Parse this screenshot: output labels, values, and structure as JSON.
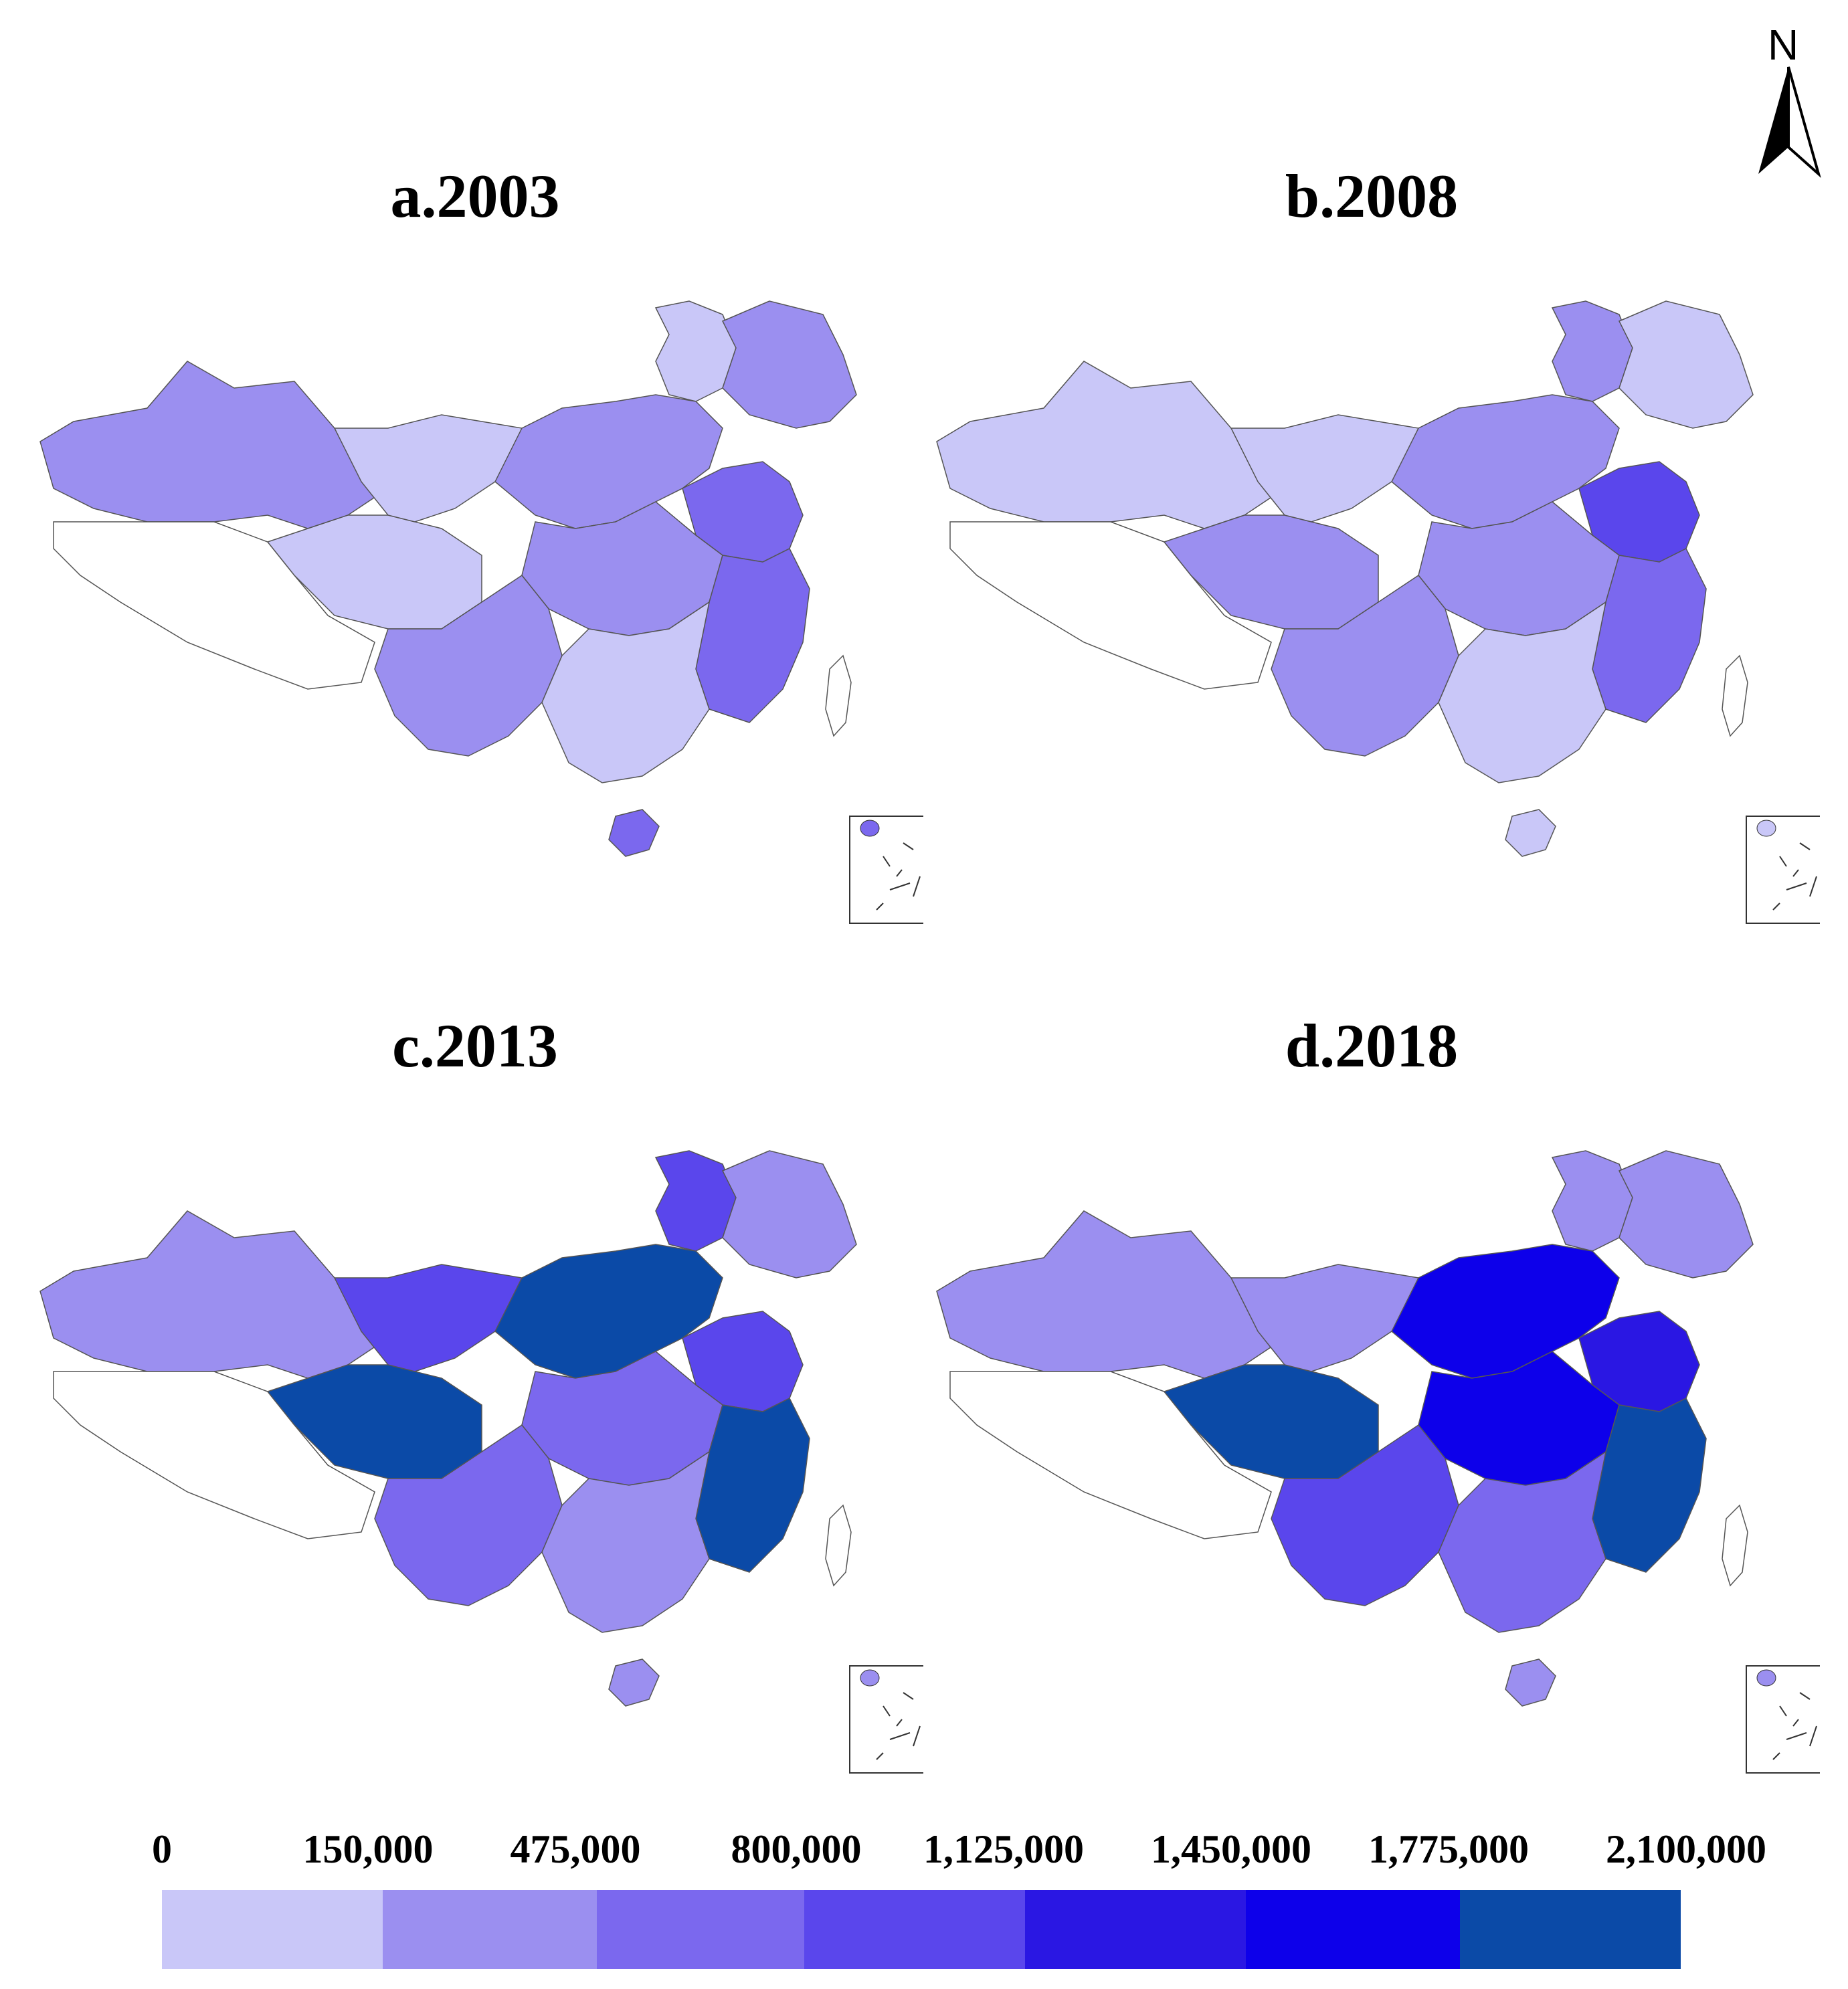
{
  "panels": [
    {
      "title": "a.2003"
    },
    {
      "title": "b.2008"
    },
    {
      "title": "c.2013"
    },
    {
      "title": "d.2018"
    }
  ],
  "north_arrow": {
    "letter": "N"
  },
  "legend": {
    "breaks": [
      "0",
      "150,000",
      "475,000",
      "800,000",
      "1,125,000",
      "1,450,000",
      "1,775,000",
      "2,100,000"
    ],
    "colors": [
      "#c9c7f8",
      "#9b8ff0",
      "#7b68ee",
      "#5a46ec",
      "#2a17e3",
      "#0d00ea",
      "#0b4aa7"
    ]
  },
  "map_data": {
    "class_by_region": {
      "a.2003": {
        "northwest": 1,
        "tibet": -1,
        "qinghai": 0,
        "gansu_inner": 0,
        "northeast_north": 0,
        "northeast_east": 1,
        "north_china": 1,
        "shandong_jiangsu": 2,
        "central": 1,
        "east_coast": 2,
        "southwest": 1,
        "south": 0,
        "hainan": 2
      },
      "b.2008": {
        "northwest": 0,
        "tibet": -1,
        "qinghai": 1,
        "gansu_inner": 0,
        "northeast_north": 1,
        "northeast_east": 0,
        "north_china": 1,
        "shandong_jiangsu": 3,
        "central": 1,
        "east_coast": 2,
        "southwest": 1,
        "south": 0,
        "hainan": 0
      },
      "c.2013": {
        "northwest": 1,
        "tibet": -1,
        "qinghai": 6,
        "gansu_inner": 3,
        "northeast_north": 3,
        "northeast_east": 1,
        "north_china": 6,
        "shandong_jiangsu": 3,
        "central": 2,
        "east_coast": 6,
        "southwest": 2,
        "south": 1,
        "hainan": 1
      },
      "d.2018": {
        "northwest": 1,
        "tibet": -1,
        "qinghai": 6,
        "gansu_inner": 1,
        "northeast_north": 1,
        "northeast_east": 1,
        "north_china": 5,
        "shandong_jiangsu": 4,
        "central": 5,
        "east_coast": 6,
        "southwest": 3,
        "south": 2,
        "hainan": 1
      }
    }
  }
}
